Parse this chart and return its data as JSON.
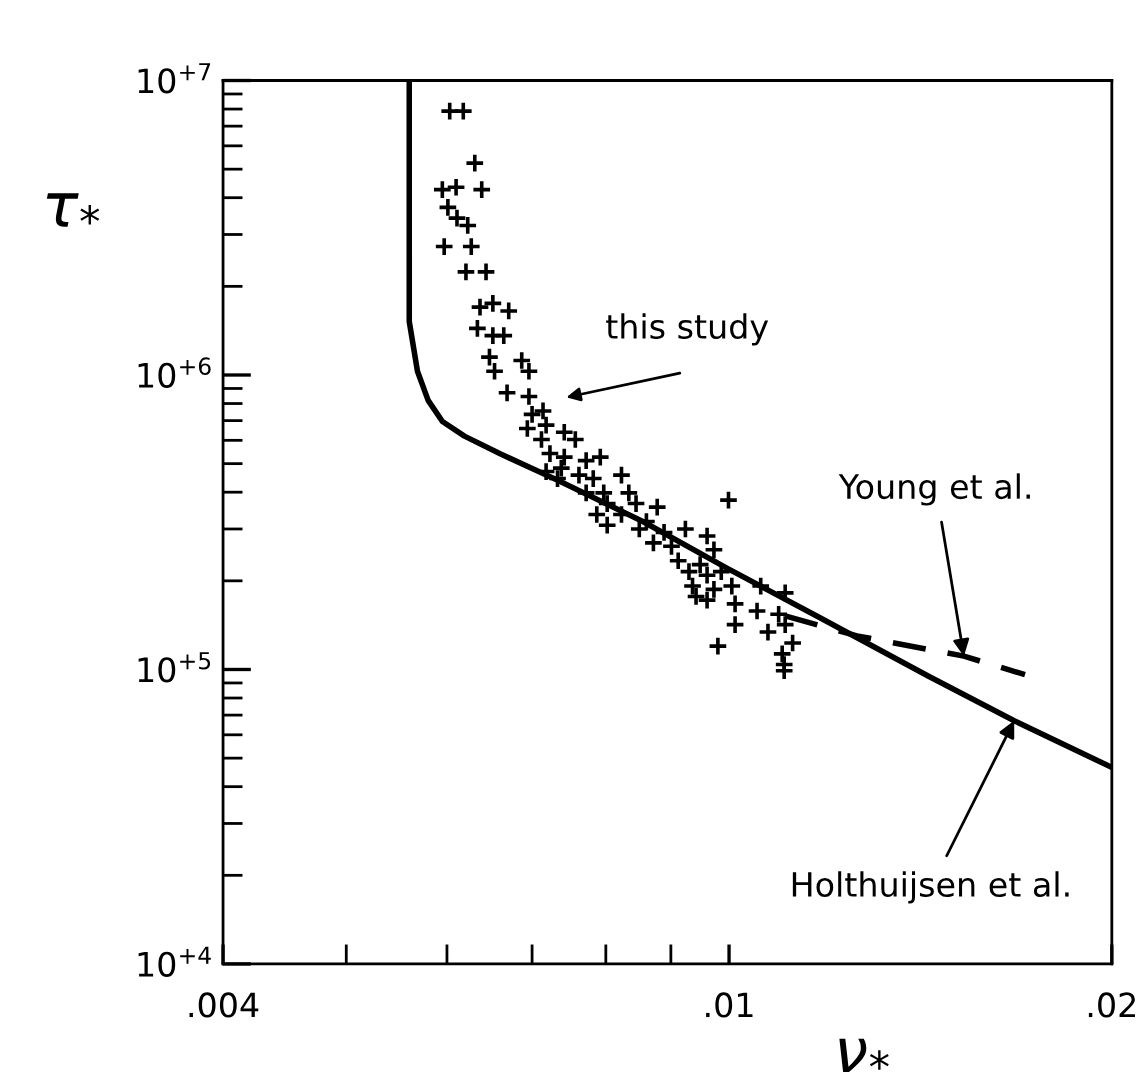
{
  "chart_data": {
    "type": "line",
    "xlabel": "ν$_{*}$",
    "ylabel": "τ$_{*}$",
    "log": "xy",
    "xlim": [
      0.004,
      0.02
    ],
    "ylim": [
      10000,
      10000000
    ],
    "xticks": [
      {
        "value": 0.004,
        "label": ".004"
      },
      {
        "value": 0.01,
        "label": ".01"
      },
      {
        "value": 0.02,
        "label": ".02"
      }
    ],
    "yticks": [
      {
        "value": 10000,
        "label": "10$^{+4}$"
      },
      {
        "value": 100000,
        "label": "10$^{+5}$"
      },
      {
        "value": 1000000,
        "label": "10$^{+6}$"
      },
      {
        "value": 10000000,
        "label": "10$^{+7}$"
      }
    ],
    "grid": false,
    "legend": false,
    "series": [
      {
        "type": "scatter",
        "marker": "cross",
        "color": "#000000",
        "x": [
          0.00603,
          0.00618,
          0.00631,
          0.00595,
          0.0061,
          0.00639,
          0.00601,
          0.00611,
          0.00623,
          0.00597,
          0.00627,
          0.00621,
          0.00644,
          0.00637,
          0.00652,
          0.00671,
          0.00634,
          0.00652,
          0.00665,
          0.00648,
          0.00687,
          0.00696,
          0.00654,
          0.00669,
          0.00696,
          0.00714,
          0.007,
          0.00718,
          0.00694,
          0.00742,
          0.00712,
          0.00757,
          0.00723,
          0.00742,
          0.00772,
          0.00792,
          0.00718,
          0.00738,
          0.00762,
          0.00782,
          0.00823,
          0.00733,
          0.00772,
          0.00797,
          0.00834,
          0.00802,
          0.00845,
          0.00878,
          0.00787,
          0.00823,
          0.00861,
          0.00802,
          0.0085,
          0.00889,
          0.00924,
          0.00961,
          0.00872,
          0.00901,
          0.00973,
          0.00912,
          0.00949,
          0.00999,
          0.0093,
          0.00961,
          0.00986,
          0.00936,
          0.00973,
          0.01005,
          0.00942,
          0.00961,
          0.01011,
          0.01059,
          0.01107,
          0.01052,
          0.01094,
          0.01011,
          0.01073,
          0.01107,
          0.01122,
          0.01101,
          0.01105,
          0.01105,
          0.0098
        ],
        "values": [
          7870000,
          7870000,
          5240000,
          4260000,
          4340000,
          4260000,
          3710000,
          3410000,
          3220000,
          2730000,
          2730000,
          2240000,
          2240000,
          1700000,
          1750000,
          1650000,
          1440000,
          1360000,
          1360000,
          1150000,
          1120000,
          1030000,
          1030000,
          870000,
          845000,
          755000,
          735000,
          676000,
          658000,
          639000,
          604000,
          604000,
          541000,
          526000,
          512000,
          526000,
          470000,
          483000,
          457000,
          445000,
          457000,
          445000,
          398000,
          398000,
          398000,
          366000,
          366000,
          356000,
          336000,
          336000,
          318000,
          309000,
          300000,
          292000,
          300000,
          284000,
          269000,
          262000,
          255000,
          234000,
          227000,
          376000,
          215000,
          209000,
          215000,
          192000,
          187000,
          192000,
          177000,
          172000,
          167000,
          192000,
          182000,
          158000,
          154000,
          142000,
          134000,
          142000,
          123000,
          113000,
          104000,
          99000,
          120000
        ]
      },
      {
        "type": "line",
        "line_style": "solid",
        "color": "#000000",
        "x": [
          0.005604,
          0.005604,
          0.005604,
          0.005688,
          0.005799,
          0.005951,
          0.006193,
          0.006607,
          0.007325,
          0.008555,
          0.00996,
          0.01182,
          0.01434,
          0.01676,
          0.02
        ],
        "values": [
          10000000,
          3500000,
          1520000,
          1030000,
          820000,
          695000,
          620000,
          540000,
          440000,
          318000,
          221000,
          149000,
          95000,
          67000,
          46500
        ]
      },
      {
        "type": "line",
        "line_style": "dashed",
        "color": "#000000",
        "x": [
          0.01107,
          0.01261,
          0.0153,
          0.01709
        ],
        "values": [
          152000,
          130000,
          111000,
          96000
        ]
      }
    ],
    "annotations": [
      "this study",
      {
        "text": "Young et al.",
        "x": 0.0153,
        "y": 111000
      },
      {
        "text": "Holthuijsen et al.",
        "x": 0.01676,
        "y": 67000
      }
    ]
  }
}
